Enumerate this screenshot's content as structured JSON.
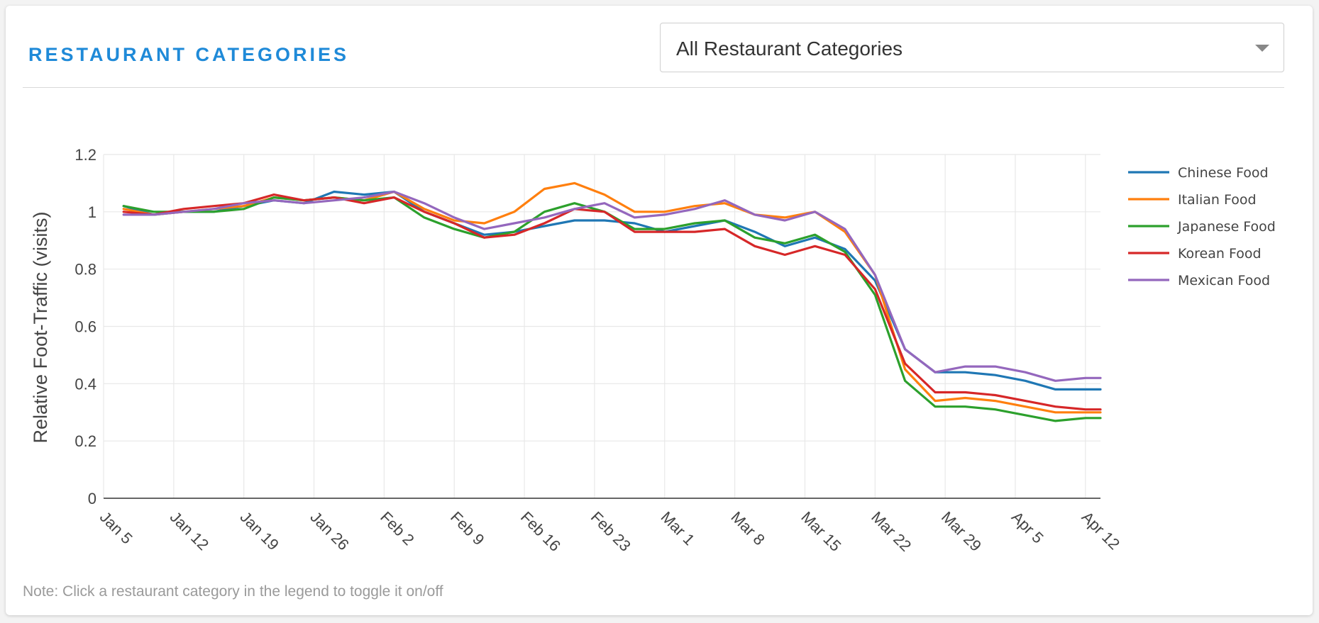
{
  "header": {
    "title": "RESTAURANT CATEGORIES",
    "dropdown_value": "All Restaurant Categories"
  },
  "note": "Note: Click a restaurant category in the legend to toggle it on/off",
  "chart_data": {
    "type": "line",
    "ylabel": "Relative Foot-Traffic (visits)",
    "ylim": [
      0,
      1.2
    ],
    "y_ticks": [
      0,
      0.2,
      0.4,
      0.6,
      0.8,
      1,
      1.2
    ],
    "y_tick_labels": [
      "0",
      "0.2",
      "0.4",
      "0.6",
      "0.8",
      "1",
      "1.2"
    ],
    "x_ticks": [
      "Jan  5",
      "Jan 12",
      "Jan 19",
      "Jan 26",
      "Feb  2",
      "Feb  9",
      "Feb 16",
      "Feb 23",
      "Mar 1",
      "Mar 8",
      "Mar 15",
      "Mar 22",
      "Mar 29",
      "Apr  5",
      "Apr 12"
    ],
    "x_range_days": [
      0,
      99.5
    ],
    "grid": true,
    "legend_position": "right",
    "x_days": [
      2,
      5,
      8,
      11,
      14,
      17,
      20,
      23,
      26,
      29,
      32,
      35,
      38,
      41,
      44,
      47,
      50,
      53,
      56,
      59,
      62,
      65,
      68,
      71,
      74,
      77,
      80,
      83,
      86,
      89,
      92,
      95,
      98,
      99.5
    ],
    "series": [
      {
        "name": "Chinese Food",
        "color": "#1f77b4",
        "values": [
          1.02,
          0.99,
          1.0,
          1.0,
          1.02,
          1.04,
          1.03,
          1.07,
          1.06,
          1.07,
          1.0,
          0.96,
          0.92,
          0.93,
          0.95,
          0.97,
          0.97,
          0.96,
          0.93,
          0.95,
          0.97,
          0.93,
          0.88,
          0.91,
          0.87,
          0.76,
          0.52,
          0.44,
          0.44,
          0.43,
          0.41,
          0.38,
          0.38,
          0.38
        ]
      },
      {
        "name": "Italian Food",
        "color": "#ff7f0e",
        "values": [
          1.01,
          0.99,
          1.0,
          1.01,
          1.02,
          1.05,
          1.04,
          1.05,
          1.04,
          1.07,
          1.01,
          0.97,
          0.96,
          1.0,
          1.08,
          1.1,
          1.06,
          1.0,
          1.0,
          1.02,
          1.03,
          0.99,
          0.98,
          1.0,
          0.93,
          0.78,
          0.45,
          0.34,
          0.35,
          0.34,
          0.32,
          0.3,
          0.3,
          0.3
        ]
      },
      {
        "name": "Japanese Food",
        "color": "#2ca02c",
        "values": [
          1.02,
          1.0,
          1.0,
          1.0,
          1.01,
          1.05,
          1.04,
          1.05,
          1.04,
          1.05,
          0.98,
          0.94,
          0.91,
          0.93,
          1.0,
          1.03,
          1.0,
          0.94,
          0.94,
          0.96,
          0.97,
          0.91,
          0.89,
          0.92,
          0.86,
          0.71,
          0.41,
          0.32,
          0.32,
          0.31,
          0.29,
          0.27,
          0.28,
          0.28
        ]
      },
      {
        "name": "Korean Food",
        "color": "#d62728",
        "values": [
          1.0,
          0.99,
          1.01,
          1.02,
          1.03,
          1.06,
          1.04,
          1.05,
          1.03,
          1.05,
          1.0,
          0.96,
          0.91,
          0.92,
          0.96,
          1.01,
          1.0,
          0.93,
          0.93,
          0.93,
          0.94,
          0.88,
          0.85,
          0.88,
          0.85,
          0.73,
          0.47,
          0.37,
          0.37,
          0.36,
          0.34,
          0.32,
          0.31,
          0.31
        ]
      },
      {
        "name": "Mexican Food",
        "color": "#9467bd",
        "values": [
          0.99,
          0.99,
          1.0,
          1.01,
          1.03,
          1.04,
          1.03,
          1.04,
          1.05,
          1.07,
          1.03,
          0.98,
          0.94,
          0.96,
          0.98,
          1.01,
          1.03,
          0.98,
          0.99,
          1.01,
          1.04,
          0.99,
          0.97,
          1.0,
          0.94,
          0.78,
          0.52,
          0.44,
          0.46,
          0.46,
          0.44,
          0.41,
          0.42,
          0.42
        ]
      }
    ]
  }
}
